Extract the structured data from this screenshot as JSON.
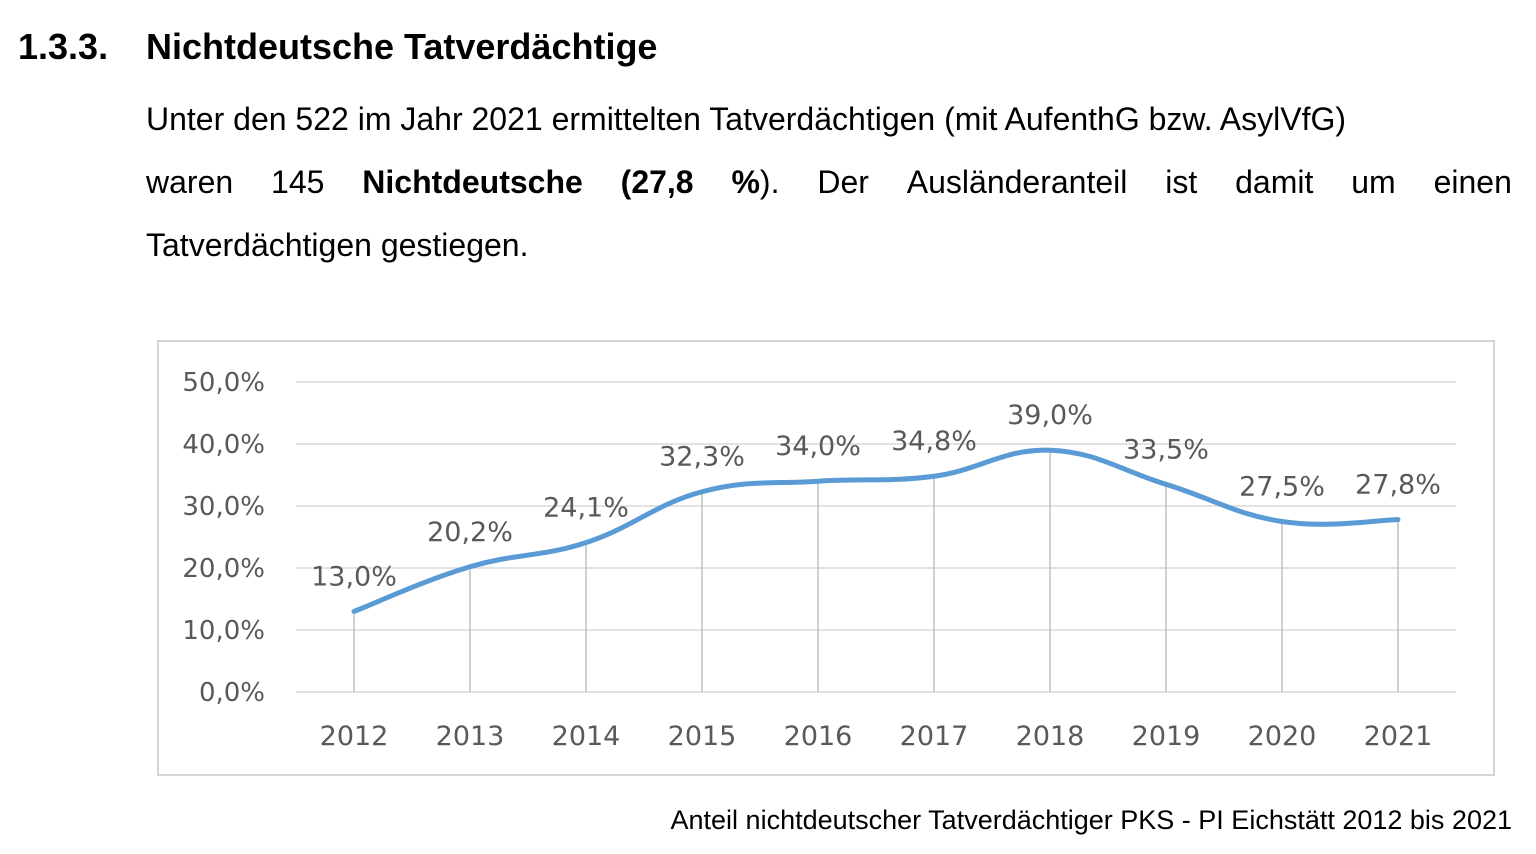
{
  "heading": {
    "number": "1.3.3.",
    "title": "Nichtdeutsche Tatverdächtige"
  },
  "paragraph": {
    "line1": "Unter den 522 im Jahr 2021 ermittelten Tatverdächtigen (mit AufenthG bzw. AsylVfG)",
    "line2_words": [
      "waren",
      "145"
    ],
    "line2_bold1": "Nichtdeutsche",
    "line2_bold2_open": "(27,8",
    "line2_bold2_pct": "%",
    "line2_close": ").",
    "line2_rest": [
      "Der",
      "Ausländeranteil",
      "ist",
      "damit",
      "um",
      "einen"
    ],
    "line3": "Tatverdächtigen gestiegen."
  },
  "chart_data": {
    "type": "line",
    "categories": [
      "2012",
      "2013",
      "2014",
      "2015",
      "2016",
      "2017",
      "2018",
      "2019",
      "2020",
      "2021"
    ],
    "values": [
      13.0,
      20.2,
      24.1,
      32.3,
      34.0,
      34.8,
      39.0,
      33.5,
      27.5,
      27.8
    ],
    "data_labels": [
      "13,0%",
      "20,2%",
      "24,1%",
      "32,3%",
      "34,0%",
      "34,8%",
      "39,0%",
      "33,5%",
      "27,5%",
      "27,8%"
    ],
    "yticks": [
      0,
      10,
      20,
      30,
      40,
      50
    ],
    "ytick_labels": [
      "0,0%",
      "10,0%",
      "20,0%",
      "30,0%",
      "40,0%",
      "50,0%"
    ],
    "ylim": [
      0,
      50
    ],
    "title": "",
    "xlabel": "",
    "ylabel": "",
    "grid": true,
    "drop_lines": true,
    "smooth": true,
    "legend": "none",
    "line_color": "#5b9bd5",
    "grid_color": "#d9d9d9",
    "text_color": "#595959"
  },
  "caption": "Anteil nichtdeutscher Tatverdächtiger PKS - PI Eichstätt 2012 bis 2021"
}
